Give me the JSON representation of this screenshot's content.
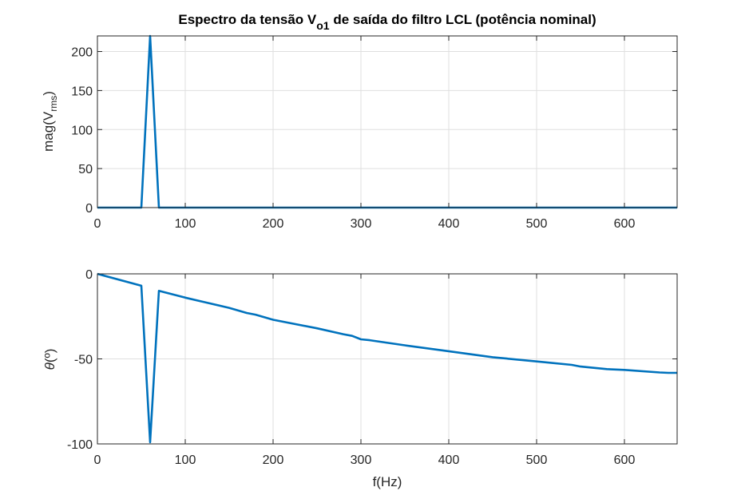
{
  "figure": {
    "title_parts": [
      "Espectro da tensão V",
      "o1",
      " de saída do filtro LCL (potência nominal)"
    ]
  },
  "chart_data": [
    {
      "type": "line",
      "title": "Espectro da tensão Vo1 de saída do filtro LCL (potência nominal)",
      "xlabel": "",
      "ylabel": "mag(Vrms)",
      "ylabel_parts": [
        "mag(V",
        "rms",
        ")"
      ],
      "xlim": [
        0,
        660
      ],
      "ylim": [
        0,
        220
      ],
      "xticks": [
        0,
        100,
        200,
        300,
        400,
        500,
        600
      ],
      "xtick_labels": [
        "0",
        "100",
        "200",
        "300",
        "400",
        "500",
        "600"
      ],
      "yticks": [
        0,
        50,
        100,
        150,
        200
      ],
      "ytick_labels": [
        "0",
        "50",
        "100",
        "150",
        "200"
      ],
      "grid": true,
      "legend": "none",
      "color": "#0072bd",
      "series": [
        {
          "x": [
            0,
            50,
            60,
            70,
            660
          ],
          "y": [
            0,
            0,
            220,
            0,
            0
          ]
        }
      ]
    },
    {
      "type": "line",
      "title": "",
      "xlabel": "f(Hz)",
      "ylabel": "θ(º)",
      "ylabel_parts": [
        "θ",
        "(º)"
      ],
      "xlim": [
        0,
        660
      ],
      "ylim": [
        -100,
        0
      ],
      "xticks": [
        0,
        100,
        200,
        300,
        400,
        500,
        600
      ],
      "xtick_labels": [
        "0",
        "100",
        "200",
        "300",
        "400",
        "500",
        "600"
      ],
      "yticks": [
        -100,
        -50,
        0
      ],
      "ytick_labels": [
        "-100",
        "-50",
        "0"
      ],
      "grid": true,
      "legend": "none",
      "color": "#0072bd",
      "series": [
        {
          "x": [
            0,
            50,
            60,
            70,
            100,
            150,
            170,
            180,
            200,
            250,
            280,
            290,
            300,
            310,
            350,
            400,
            450,
            500,
            540,
            550,
            580,
            600,
            640,
            650,
            660
          ],
          "y": [
            0,
            -7,
            -99,
            -10,
            -14,
            -20,
            -23,
            -24,
            -27,
            -32,
            -35.5,
            -36.5,
            -38.5,
            -39,
            -42,
            -45.5,
            -49,
            -51.5,
            -53.5,
            -54.5,
            -56,
            -56.5,
            -58,
            -58.2,
            -58.2
          ]
        }
      ]
    }
  ]
}
